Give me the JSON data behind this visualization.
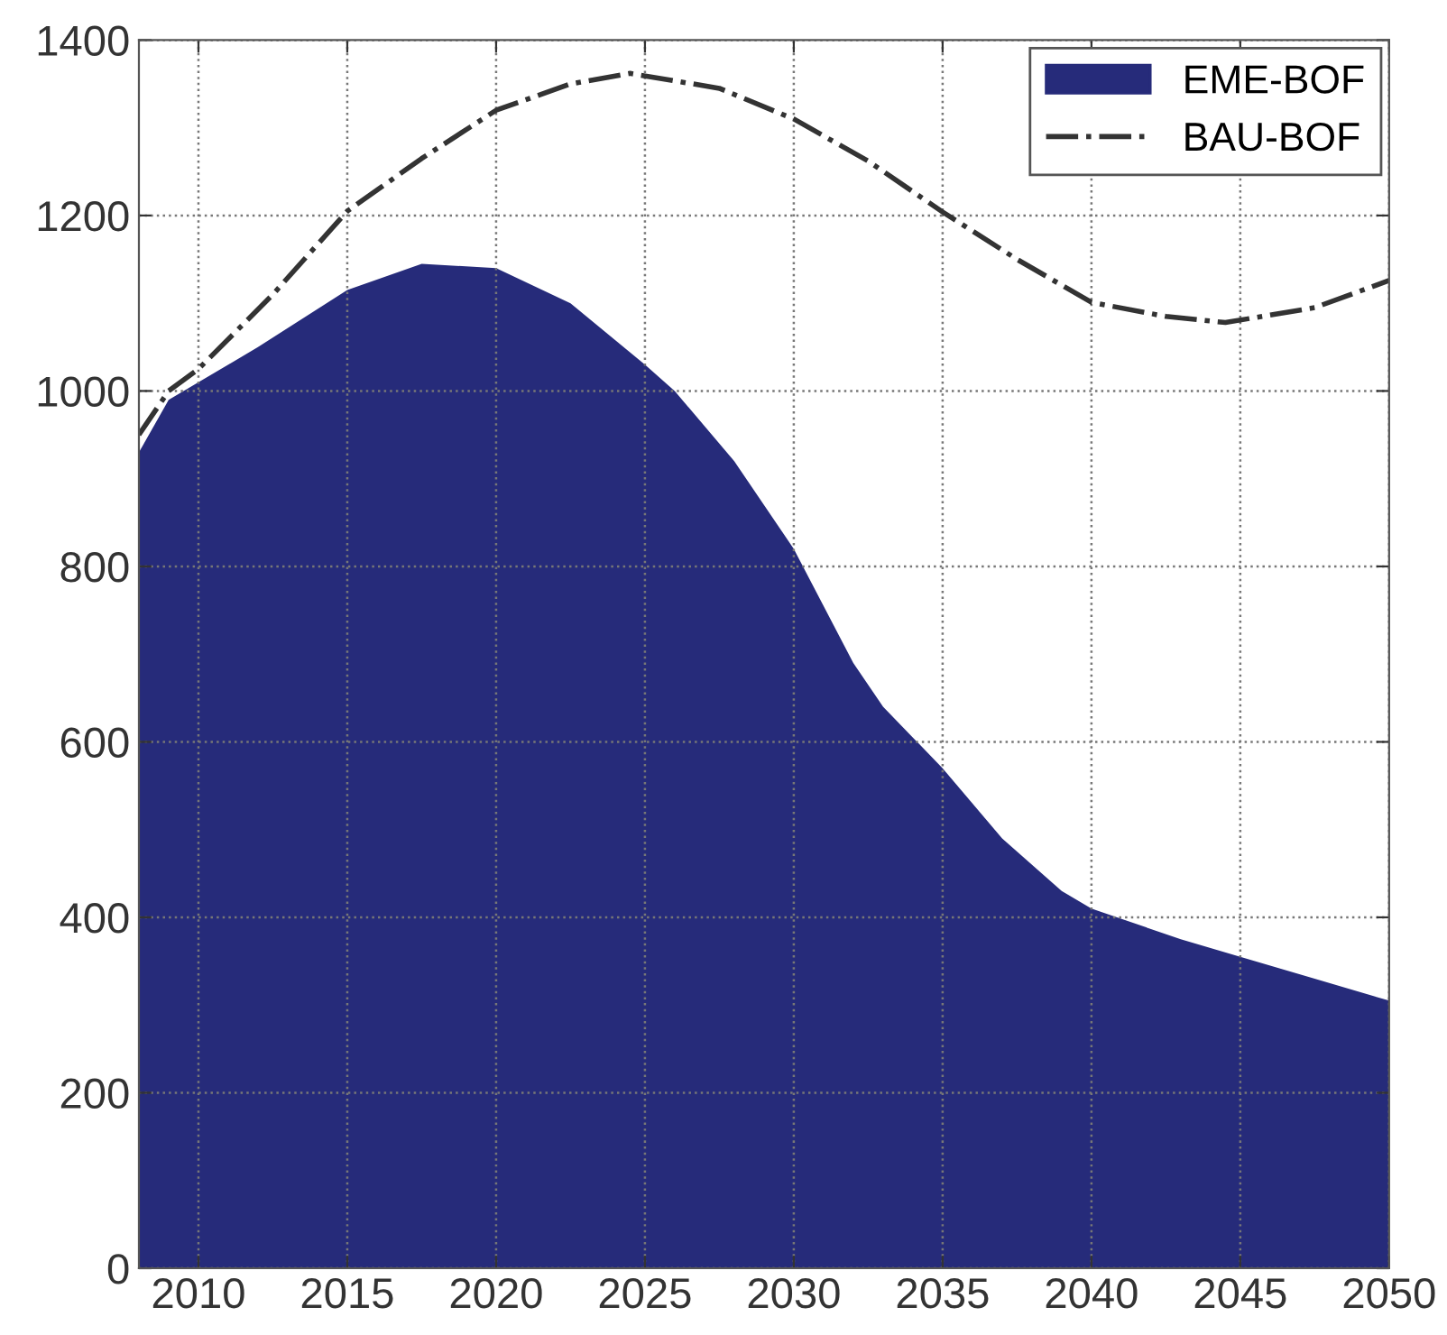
{
  "chart_data": {
    "type": "area",
    "xlim": [
      2008,
      2050
    ],
    "xticks": [
      2010,
      2015,
      2020,
      2025,
      2030,
      2035,
      2040,
      2045,
      2050
    ],
    "ylim": [
      0,
      1400
    ],
    "yticks": [
      0,
      200,
      400,
      600,
      800,
      1000,
      1200,
      1400
    ],
    "grid": true,
    "legend": "top right",
    "series": [
      {
        "name": "EME-BOF",
        "color": "#262b7a",
        "x": [
          2008,
          2009,
          2010,
          2012,
          2015,
          2017.5,
          2020,
          2022.5,
          2025,
          2026,
          2028,
          2030,
          2032,
          2033,
          2035,
          2037,
          2039,
          2040,
          2043,
          2045,
          2047.5,
          2050
        ],
        "values": [
          930,
          990,
          1010,
          1050,
          1115,
          1145,
          1140,
          1100,
          1030,
          1000,
          920,
          820,
          690,
          640,
          570,
          490,
          430,
          410,
          375,
          355,
          330,
          305
        ]
      },
      {
        "name": "BAU-BOF",
        "type": "line",
        "line_style": "dashdot",
        "color": "#333333",
        "x": [
          2008,
          2009,
          2010,
          2012.5,
          2015,
          2017.5,
          2020,
          2022.5,
          2024.5,
          2027.5,
          2030,
          2032.5,
          2035,
          2037.5,
          2040,
          2042.5,
          2044.5,
          2047.5,
          2050
        ],
        "values": [
          950,
          1000,
          1025,
          1110,
          1205,
          1265,
          1320,
          1350,
          1362,
          1345,
          1310,
          1262,
          1204,
          1150,
          1101,
          1085,
          1078,
          1095,
          1126
        ]
      }
    ]
  }
}
